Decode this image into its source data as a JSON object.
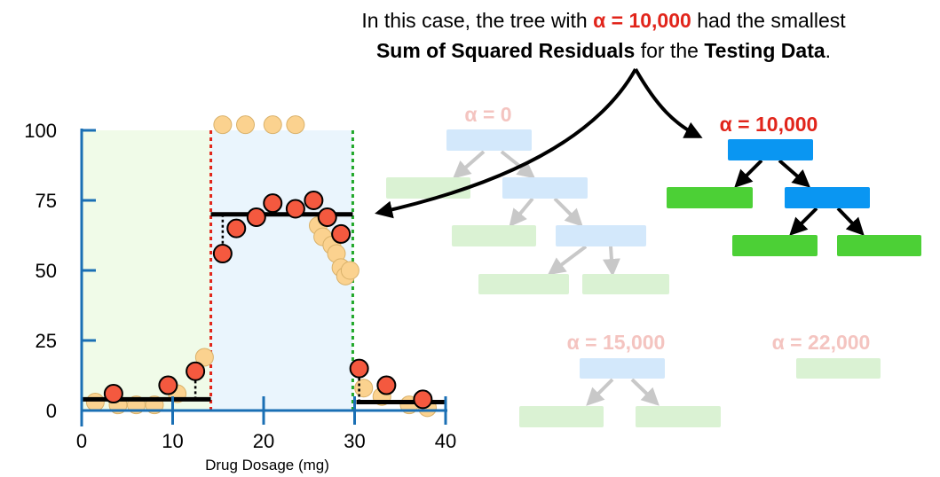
{
  "caption": {
    "line1_prefix": "In this case, the tree with ",
    "line1_alpha": "α = 10,000",
    "line1_suffix": " had the smallest",
    "line2_bold1": "Sum of Squared Residuals",
    "line2_mid": " for the ",
    "line2_bold2": "Testing Data",
    "line2_end": "."
  },
  "trees": [
    {
      "label": "α = 0",
      "faded": true
    },
    {
      "label": "α = 10,000",
      "faded": false
    },
    {
      "label": "α = 15,000",
      "faded": true
    },
    {
      "label": "α = 22,000",
      "faded": true
    }
  ],
  "chart_data": {
    "type": "scatter",
    "xlabel": "Drug Dosage (mg)",
    "xlim": [
      0,
      40
    ],
    "ylim": [
      0,
      100
    ],
    "xticks": [
      "0",
      "10",
      "20",
      "30",
      "40"
    ],
    "yticks": [
      "0",
      "25",
      "50",
      "75",
      "100"
    ],
    "training_points": [
      [
        1.5,
        3
      ],
      [
        4,
        2
      ],
      [
        6,
        2
      ],
      [
        8,
        2
      ],
      [
        10.5,
        6
      ],
      [
        13.5,
        19
      ],
      [
        15.5,
        102
      ],
      [
        18,
        102
      ],
      [
        21,
        102
      ],
      [
        23.5,
        102
      ],
      [
        26,
        66
      ],
      [
        26.5,
        62
      ],
      [
        27.5,
        59
      ],
      [
        28,
        56
      ],
      [
        28.5,
        51
      ],
      [
        29,
        48
      ],
      [
        29.5,
        50
      ],
      [
        31,
        8
      ],
      [
        33,
        5
      ],
      [
        36,
        2
      ],
      [
        38,
        1
      ]
    ],
    "testing_points": [
      [
        3.5,
        6
      ],
      [
        9.5,
        9
      ],
      [
        12.5,
        14
      ],
      [
        15.5,
        56
      ],
      [
        17,
        65
      ],
      [
        19.2,
        69
      ],
      [
        21,
        74
      ],
      [
        23.5,
        72
      ],
      [
        25.5,
        75
      ],
      [
        27,
        69
      ],
      [
        28.5,
        63
      ],
      [
        30.5,
        15
      ],
      [
        33.5,
        9
      ],
      [
        37.5,
        4
      ]
    ],
    "predictions": [
      {
        "x0": 0,
        "x1": 14.2,
        "y": 4
      },
      {
        "x0": 14.2,
        "x1": 29.8,
        "y": 70
      },
      {
        "x0": 30.2,
        "x1": 40,
        "y": 3
      }
    ],
    "residual_segments": [
      {
        "x": 12.5,
        "y_from": 4,
        "y_to": 14
      },
      {
        "x": 15.5,
        "y_from": 70,
        "y_to": 56
      },
      {
        "x": 30.5,
        "y_from": 3,
        "y_to": 15
      }
    ],
    "thresholds": [
      {
        "x": 14.2,
        "color": "#e1251b"
      },
      {
        "x": 29.8,
        "color": "#22a82a"
      }
    ],
    "regions": [
      {
        "x0": 0,
        "x1": 14.2,
        "color": "#f0fbe8"
      },
      {
        "x0": 14.2,
        "x1": 29.8,
        "color": "#eaf5fd"
      }
    ]
  },
  "colors": {
    "axis": "#1a6fb4",
    "train_fill": "#fbd28f",
    "test_fill": "#f4593f",
    "node_blue": "#0a96f2",
    "node_green": "#4cd036",
    "faded_blue": "#d3e8fb",
    "faded_green": "#daf2d3",
    "faded_label": "#f4c4c0",
    "alpha_red": "#e1251b"
  }
}
